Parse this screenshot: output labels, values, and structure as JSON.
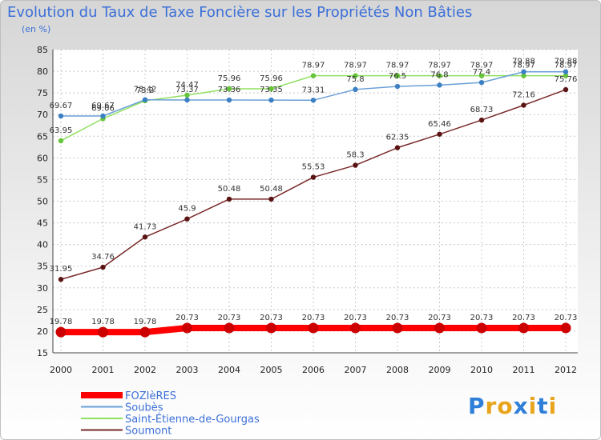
{
  "chart_data": {
    "type": "line",
    "title": "Evolution du Taux de Taxe Foncière sur les Propriétés Non Bâties",
    "subtitle": "(en %)",
    "categories": [
      "2000",
      "2001",
      "2002",
      "2003",
      "2004",
      "2005",
      "2006",
      "2007",
      "2008",
      "2009",
      "2010",
      "2011",
      "2012"
    ],
    "ylim": [
      15,
      85
    ],
    "yticks": [
      15,
      20,
      25,
      30,
      35,
      40,
      45,
      50,
      55,
      60,
      65,
      70,
      75,
      80,
      85
    ],
    "grid": "dotted",
    "legend_position": "bottom-left",
    "series": [
      {
        "name": "FOZIèRES",
        "color": "#ff0000",
        "marker_color": "#cc0000",
        "values": [
          19.78,
          19.78,
          19.78,
          20.73,
          20.73,
          20.73,
          20.73,
          20.73,
          20.73,
          20.73,
          20.73,
          20.73,
          20.73
        ],
        "labels": [
          "19.78",
          "19.78",
          "19.78",
          "20.73",
          "20.73",
          "20.73",
          "20.73",
          "20.73",
          "20.73",
          "20.73",
          "20.73",
          "20.73",
          "20.73"
        ]
      },
      {
        "name": "Soubès",
        "color": "#6a9fd6",
        "marker_color": "#3b7fc4",
        "values": [
          69.67,
          69.67,
          73.42,
          73.37,
          73.36,
          73.35,
          73.31,
          75.8,
          76.5,
          76.8,
          77.4,
          79.88,
          79.88
        ],
        "labels": [
          "69.67",
          "69.67",
          "73.42",
          "73.37",
          "73.36",
          "73.35",
          "73.31",
          "75.8",
          "76.5",
          "76.8",
          "77.4",
          "79.88",
          "79.88"
        ]
      },
      {
        "name": "Saint-Étienne-de-Gourgas",
        "color": "#90e060",
        "marker_color": "#66c43a",
        "values": [
          63.95,
          69.06,
          73.2,
          74.47,
          75.96,
          75.96,
          78.97,
          78.97,
          78.97,
          78.97,
          78.97,
          78.97,
          78.97
        ],
        "labels": [
          "63.95",
          "69.06",
          "73.2",
          "74.47",
          "75.96",
          "75.96",
          "78.97",
          "78.97",
          "78.97",
          "78.97",
          "78.97",
          "78.97",
          "78.97"
        ]
      },
      {
        "name": "Soumont",
        "color": "#7a2a2a",
        "marker_color": "#5a1414",
        "values": [
          31.95,
          34.76,
          41.73,
          45.9,
          50.48,
          50.48,
          55.53,
          58.3,
          62.35,
          65.46,
          68.73,
          72.16,
          75.76
        ],
        "labels": [
          "31.95",
          "34.76",
          "41.73",
          "45.9",
          "50.48",
          "50.48",
          "55.53",
          "58.3",
          "62.35",
          "65.46",
          "68.73",
          "72.16",
          "75.76"
        ]
      }
    ]
  },
  "logo": {
    "text": "Proxiti",
    "letter_colors": [
      "#2f7fd8",
      "#e8a51c",
      "#e8a51c",
      "#2f7fd8",
      "#e8a51c",
      "#2f7fd8",
      "#e8a51c"
    ]
  }
}
